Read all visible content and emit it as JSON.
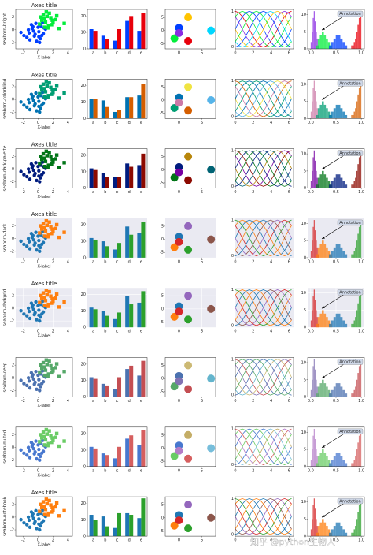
{
  "rows": [
    {
      "name": "seaborn-bright",
      "title": true,
      "bg": "#ffffff",
      "grid": false,
      "frame": true,
      "colors": [
        "#003FFF",
        "#03ED3A",
        "#E8000B",
        "#8A2BE2",
        "#FFC400",
        "#00D7FF"
      ]
    },
    {
      "name": "seaborn-colorblind",
      "title": true,
      "bg": "#ffffff",
      "grid": false,
      "frame": true,
      "colors": [
        "#0072B2",
        "#009E73",
        "#D55E00",
        "#CC79A7",
        "#F0E442",
        "#56B4E9"
      ]
    },
    {
      "name": "seaborn-dark-palette",
      "title": true,
      "bg": "#ffffff",
      "grid": false,
      "frame": true,
      "colors": [
        "#001C7F",
        "#017517",
        "#8C0900",
        "#7600A1",
        "#B8860B",
        "#006374"
      ]
    },
    {
      "name": "seaborn-dark",
      "title": true,
      "bg": "#EAEAF2",
      "grid": false,
      "frame": false,
      "colors": [
        "#1f77b4",
        "#ff7f0e",
        "#2ca02c",
        "#d62728",
        "#9467bd",
        "#8c564b"
      ]
    },
    {
      "name": "seaborn-darkgrid",
      "title": true,
      "bg": "#EAEAF2",
      "grid": true,
      "frame": false,
      "colors": [
        "#1f77b4",
        "#ff7f0e",
        "#2ca02c",
        "#d62728",
        "#9467bd",
        "#8c564b"
      ]
    },
    {
      "name": "seaborn-deep",
      "title": false,
      "bg": "#ffffff",
      "grid": false,
      "frame": true,
      "colors": [
        "#4C72B0",
        "#55A868",
        "#C44E52",
        "#8172B2",
        "#CCB974",
        "#64B5CD"
      ]
    },
    {
      "name": "seaborn-muted",
      "title": false,
      "bg": "#ffffff",
      "grid": false,
      "frame": true,
      "colors": [
        "#4878CF",
        "#6ACC65",
        "#D65F5F",
        "#B47CC7",
        "#C4AD66",
        "#77BEDB"
      ]
    },
    {
      "name": "seaborn-notebook",
      "title": true,
      "bg": "#ffffff",
      "grid": false,
      "frame": true,
      "colors": [
        "#1f77b4",
        "#ff7f0e",
        "#2ca02c",
        "#d62728",
        "#9467bd",
        "#8c564b"
      ]
    }
  ],
  "chart_data": [
    {
      "type": "scatter",
      "title": "Axes title",
      "xlabel": "X-label",
      "xlim": [
        -3,
        4.6
      ],
      "ylim": [
        -3,
        3.2
      ],
      "xticks": [
        -2,
        0,
        2,
        4
      ],
      "yticks": [
        -2,
        0,
        2
      ],
      "series": [
        {
          "x": [
            -1.2,
            -0.8,
            -0.5,
            0.1,
            0.4,
            -1.5,
            -0.2,
            0.7,
            -0.9,
            0.3,
            -0.6,
            0.0,
            1.0,
            -1.9,
            -0.3,
            0.5,
            -1.1,
            0.2,
            -0.7,
            0.8,
            -2.3,
            -0.4,
            0.6,
            -1.3,
            0.1
          ],
          "values": [
            -0.5,
            0.2,
            -1.0,
            -0.3,
            0.6,
            -1.2,
            -1.8,
            -0.6,
            0.8,
            -1.4,
            -0.2,
            0.4,
            0.1,
            -0.9,
            1.0,
            -0.9,
            -1.6,
            -2.0,
            0.5,
            0.3,
            -0.4,
            -0.7,
            1.1,
            0.0,
            -1.1
          ]
        },
        {
          "x": [
            0.5,
            1.2,
            1.8,
            0.9,
            2.3,
            1.5,
            0.2,
            1.0,
            2.8,
            1.7,
            0.7,
            1.4,
            2.0,
            0.4,
            3.5,
            1.1,
            1.9,
            0.8,
            2.5,
            1.3
          ],
          "values": [
            1.5,
            2.1,
            0.8,
            0.4,
            1.6,
            2.6,
            0.9,
            1.2,
            0.2,
            1.9,
            2.4,
            0.6,
            1.1,
            2.0,
            1.0,
            2.8,
            1.5,
            1.7,
            2.2,
            0.3
          ]
        }
      ]
    },
    {
      "type": "bar",
      "categories": [
        "a",
        "b",
        "c",
        "d",
        "e"
      ],
      "ylim": [
        0,
        24
      ],
      "yticks": [
        0,
        10,
        20
      ],
      "rows": [
        [
          [
            12,
            8,
            5,
            17,
            11
          ],
          [
            11,
            6,
            12,
            20,
            22
          ]
        ],
        [
          [
            12,
            11,
            4,
            13,
            14
          ],
          [
            12,
            7,
            5,
            13,
            21
          ]
        ],
        [
          [
            12,
            9,
            7,
            15,
            14
          ],
          [
            11,
            7,
            7,
            13,
            21
          ]
        ],
        [
          [
            12,
            10,
            5,
            19,
            15
          ],
          [
            11,
            7,
            9,
            14,
            22
          ]
        ],
        [
          [
            12,
            10,
            5,
            19,
            15
          ],
          [
            11,
            7,
            9,
            14,
            22
          ]
        ],
        [
          [
            12,
            8,
            5,
            17,
            13
          ],
          [
            11,
            7,
            12,
            19,
            22
          ]
        ],
        [
          [
            12,
            8,
            5,
            17,
            13
          ],
          [
            11,
            7,
            12,
            19,
            22
          ]
        ],
        [
          [
            13,
            12,
            5,
            14,
            11
          ],
          [
            10,
            6,
            14,
            13,
            23
          ]
        ]
      ]
    },
    {
      "type": "bubble",
      "xlim": [
        -3,
        8
      ],
      "ylim": [
        -7,
        8
      ],
      "xticks": [
        0,
        5
      ],
      "yticks": [
        -5,
        0,
        5
      ],
      "x": [
        2,
        7,
        0,
        -1,
        2,
        0
      ],
      "values": [
        5,
        0,
        1,
        -3,
        -4,
        -1
      ]
    },
    {
      "type": "line",
      "xlim": [
        0,
        6.5
      ],
      "ylim": [
        -0.05,
        1.05
      ],
      "xticks": [
        0,
        2,
        4,
        6
      ],
      "yticks": [
        0,
        1
      ],
      "x": [
        0,
        0.39,
        0.79,
        1.18,
        1.57,
        1.96,
        2.36,
        2.75,
        3.14,
        3.53,
        3.93,
        4.32,
        4.71,
        5.11,
        5.5,
        5.89,
        6.28
      ],
      "series": [
        {
          "values": [
            0.5,
            0.69,
            0.85,
            0.96,
            1,
            0.96,
            0.85,
            0.69,
            0.5,
            0.31,
            0.15,
            0.04,
            0,
            0.04,
            0.15,
            0.31,
            0.5
          ]
        },
        {
          "values": [
            0.85,
            0.96,
            1,
            0.96,
            0.85,
            0.69,
            0.5,
            0.31,
            0.15,
            0.04,
            0,
            0.04,
            0.15,
            0.31,
            0.5,
            0.69,
            0.85
          ]
        },
        {
          "values": [
            1,
            0.96,
            0.85,
            0.69,
            0.5,
            0.31,
            0.15,
            0.04,
            0,
            0.04,
            0.15,
            0.31,
            0.5,
            0.69,
            0.85,
            0.96,
            1
          ]
        },
        {
          "values": [
            0.85,
            0.69,
            0.5,
            0.31,
            0.15,
            0.04,
            0,
            0.04,
            0.15,
            0.31,
            0.5,
            0.69,
            0.85,
            0.96,
            1,
            0.96,
            0.85
          ]
        },
        {
          "values": [
            0.5,
            0.31,
            0.15,
            0.04,
            0,
            0.04,
            0.15,
            0.31,
            0.5,
            0.69,
            0.85,
            0.96,
            1,
            0.96,
            0.85,
            0.69,
            0.5
          ]
        },
        {
          "values": [
            0.15,
            0.04,
            0,
            0.04,
            0.15,
            0.31,
            0.5,
            0.69,
            0.85,
            0.96,
            1,
            0.96,
            0.85,
            0.69,
            0.5,
            0.31,
            0.15
          ]
        },
        {
          "values": [
            0,
            0.04,
            0.15,
            0.31,
            0.5,
            0.69,
            0.85,
            0.96,
            1,
            0.96,
            0.85,
            0.69,
            0.5,
            0.31,
            0.15,
            0.04,
            0
          ]
        },
        {
          "values": [
            0.15,
            0.31,
            0.5,
            0.69,
            0.85,
            0.96,
            1,
            0.96,
            0.85,
            0.69,
            0.5,
            0.31,
            0.15,
            0.04,
            0,
            0.04,
            0.15
          ]
        }
      ]
    },
    {
      "type": "histogram",
      "annotation": "Annotation",
      "xlim": [
        -0.06,
        1.06
      ],
      "ylim": [
        0,
        11.5
      ],
      "xticks": [
        {
          "value": 0,
          "label": "0.0"
        },
        {
          "value": 0.5,
          "label": "0.5"
        },
        {
          "value": 1,
          "label": "1.0"
        }
      ],
      "yticks": [
        0,
        5,
        10
      ],
      "series": [
        {
          "bins": [
            0,
            0.02,
            0.04,
            0.06,
            0.08,
            0.1,
            0.12,
            0.14,
            0.16
          ],
          "counts": [
            2,
            5,
            9,
            11,
            8,
            5,
            3,
            1
          ]
        },
        {
          "bins": [
            0.1,
            0.14,
            0.18,
            0.22,
            0.26,
            0.3,
            0.34,
            0.38,
            0.42
          ],
          "counts": [
            1,
            3,
            4,
            5,
            4,
            3,
            2,
            1
          ]
        },
        {
          "bins": [
            0.36,
            0.405,
            0.45,
            0.495,
            0.54,
            0.585,
            0.63,
            0.675,
            0.72
          ],
          "counts": [
            1,
            2,
            3,
            4,
            4,
            3,
            2,
            1
          ]
        },
        {
          "bins": [
            0.8,
            0.825,
            0.85,
            0.875,
            0.9,
            0.925,
            0.95,
            0.975,
            1.0
          ],
          "counts": [
            1,
            1,
            2,
            3,
            5,
            7,
            9,
            10
          ]
        }
      ]
    }
  ],
  "watermark": "知乎 @python生物人"
}
